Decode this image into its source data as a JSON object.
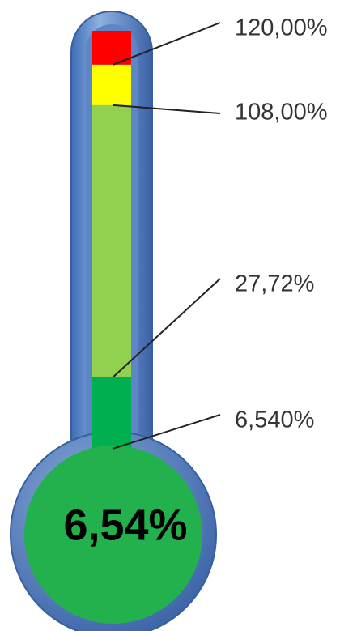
{
  "chart_data": {
    "type": "thermometer",
    "value": 6.54,
    "value_label": "6,54%",
    "bulb_color": "#22b14c",
    "ylim": [
      0,
      130
    ],
    "markers": [
      {
        "value": 6.54,
        "label": "6,540%"
      },
      {
        "value": 27.72,
        "label": "27,72%"
      },
      {
        "value": 108,
        "label": "108,00%"
      },
      {
        "value": 120,
        "label": "120,00%"
      }
    ],
    "band_colors": [
      "#00b050",
      "#92d050",
      "#ffff00",
      "#ff0000"
    ]
  }
}
